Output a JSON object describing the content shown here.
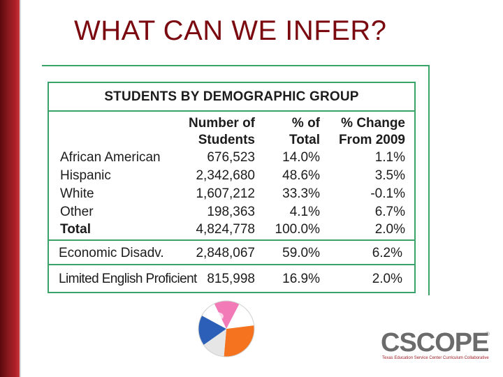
{
  "slide": {
    "title": "WHAT CAN WE INFER?"
  },
  "table": {
    "title": "STUDENTS BY DEMOGRAPHIC GROUP",
    "columns": [
      {
        "line1": "Number of",
        "line2": "Students"
      },
      {
        "line1": "% of",
        "line2": "Total"
      },
      {
        "line1": "% Change",
        "line2": "From 2009"
      }
    ],
    "rows": [
      {
        "group": "African American",
        "number": "676,523",
        "pct": "14.0%",
        "change": "1.1%"
      },
      {
        "group": "Hispanic",
        "number": "2,342,680",
        "pct": "48.6%",
        "change": "3.5%"
      },
      {
        "group": "White",
        "number": "1,607,212",
        "pct": "33.3%",
        "change": "-0.1%"
      },
      {
        "group": "Other",
        "number": "198,363",
        "pct": "4.1%",
        "change": "6.7%"
      },
      {
        "group": "Total",
        "number": "4,824,778",
        "pct": "100.0%",
        "change": "2.0%"
      }
    ],
    "econ": {
      "group": "Economic Disadv.",
      "number": "2,848,067",
      "pct": "59.0%",
      "change": "6.2%"
    },
    "lep": {
      "group": "Limited English Proficient",
      "number": "815,998",
      "pct": "16.9%",
      "change": "2.0%"
    }
  },
  "logo": {
    "name": "CSCOPE",
    "registered": "®",
    "tagline": "Texas Education Service Center Curriculum Collaborative"
  },
  "colors": {
    "title": "#7a0a10",
    "border": "#3aa36a",
    "sidebar": "#8d1a20"
  }
}
